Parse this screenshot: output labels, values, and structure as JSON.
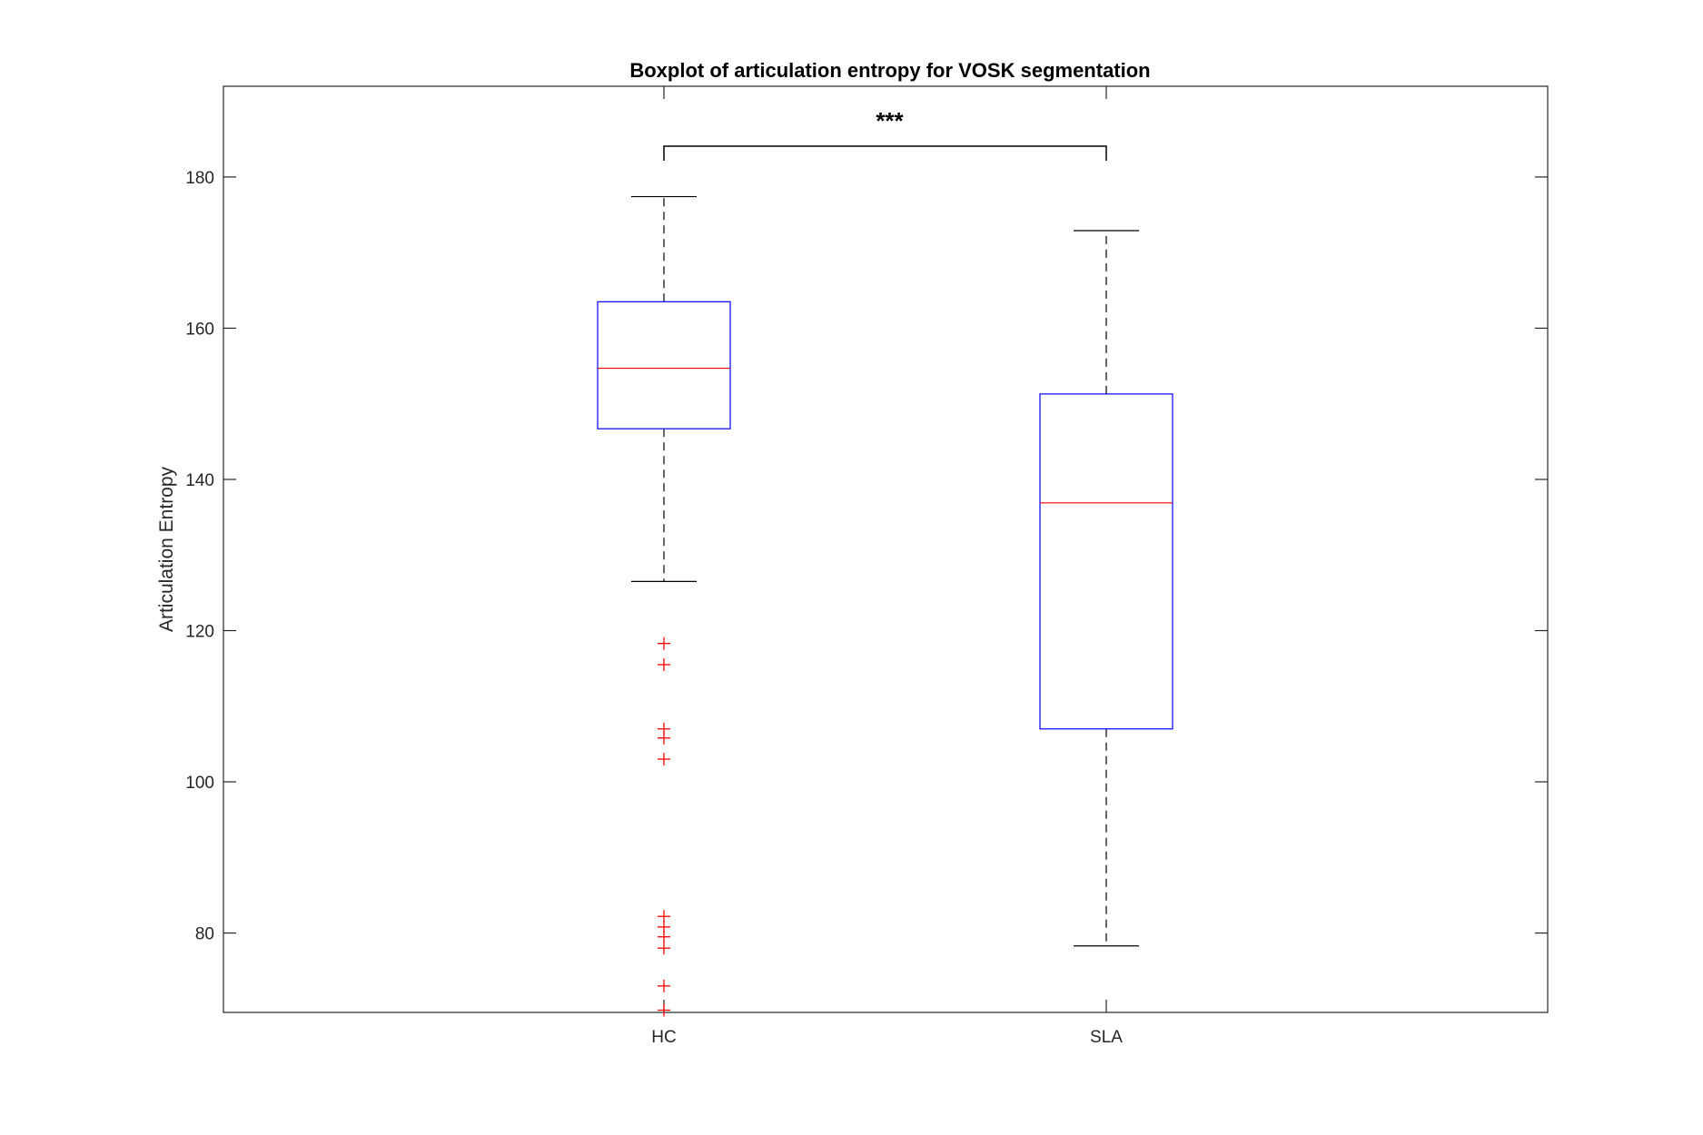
{
  "chart_data": {
    "type": "boxplot",
    "title": "Boxplot of articulation entropy for VOSK segmentation",
    "xlabel": "",
    "ylabel": "Articulation Entropy",
    "ylim": [
      69.5,
      192
    ],
    "yticks": [
      80,
      100,
      120,
      140,
      160,
      180
    ],
    "categories": [
      "HC",
      "SLA"
    ],
    "boxes": [
      {
        "label": "HC",
        "whisker_low": 126.5,
        "q1": 146.7,
        "median": 154.7,
        "q3": 163.5,
        "whisker_high": 177.4,
        "outliers": [
          118.3,
          115.5,
          107.0,
          105.8,
          103.0,
          82.2,
          80.8,
          79.5,
          78.0,
          73.0,
          69.8
        ]
      },
      {
        "label": "SLA",
        "whisker_low": 78.3,
        "q1": 107.0,
        "median": 136.9,
        "q3": 151.3,
        "whisker_high": 172.9,
        "outliers": []
      }
    ],
    "significance": {
      "label": "***",
      "between": [
        "HC",
        "SLA"
      ]
    },
    "colors": {
      "box": "#0000ff",
      "median": "#ff0000",
      "outlier": "#ff0000",
      "whisker": "#000000",
      "axes": "#262626"
    },
    "grid": false
  }
}
